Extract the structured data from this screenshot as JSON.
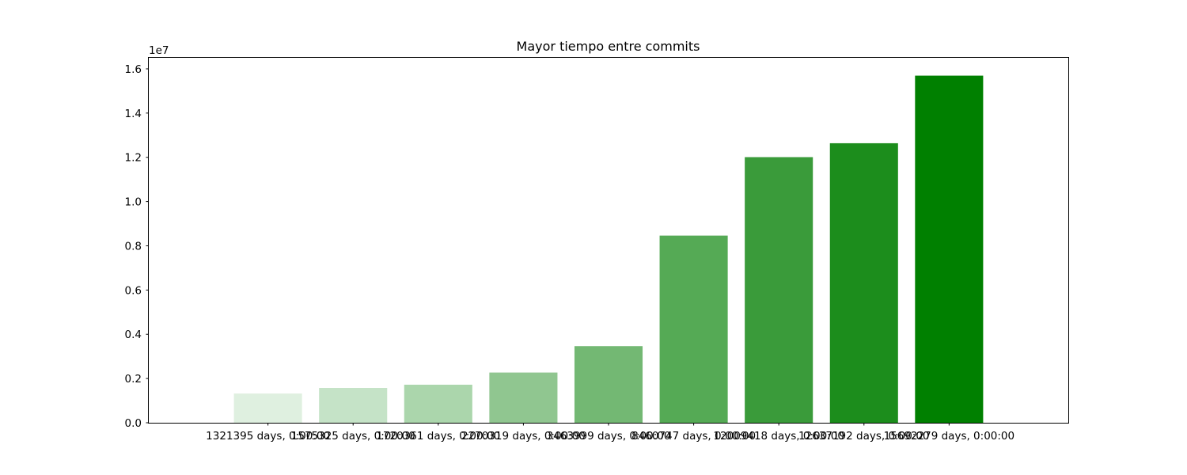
{
  "chart_data": {
    "type": "bar",
    "title": "Mayor tiempo entre commits",
    "xlabel": "",
    "ylabel": "",
    "y_offset_label": "1e7",
    "ylim": [
      0,
      1.65
    ],
    "y_ticks": [
      0.0,
      0.2,
      0.4,
      0.6,
      0.8,
      1.0,
      1.2,
      1.4,
      1.6
    ],
    "y_tick_labels": [
      "0.0",
      "0.2",
      "0.4",
      "0.6",
      "0.8",
      "1.0",
      "1.2",
      "1.4",
      "1.6"
    ],
    "categories": [
      "1321395 days, 0:00:00",
      "1575325 days, 0:00:00",
      "1720361 days, 0:00:00",
      "2270319 days, 0:00:00",
      "3463999 days, 0:00:00",
      "8460747 days, 0:00:00",
      "12009418 days, 0:00:00",
      "12637192 days, 0:00:00",
      "15692279 days, 0:00:00"
    ],
    "values": [
      0.1321,
      0.1575,
      0.172,
      0.227,
      0.3464,
      0.8461,
      1.2009,
      1.2637,
      1.5692
    ],
    "colors": [
      "#dff0e0",
      "#c5e3c7",
      "#abd6ac",
      "#90c690",
      "#73b873",
      "#55aa55",
      "#3a9b3a",
      "#1c8d1c",
      "#008000"
    ],
    "grid": false,
    "legend": "none"
  }
}
